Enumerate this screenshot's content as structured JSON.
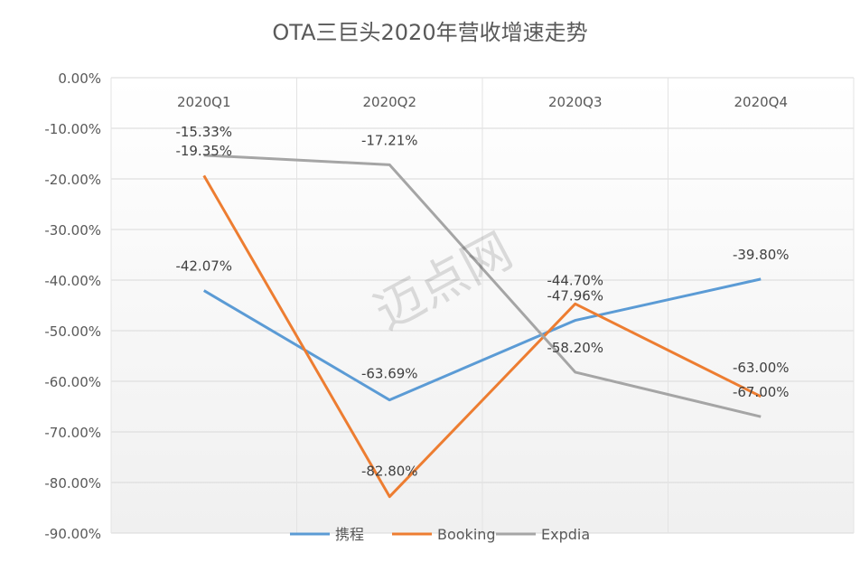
{
  "chart_data": {
    "type": "line",
    "title": "OTA三巨头2020年营收增速走势",
    "categories": [
      "2020Q1",
      "2020Q2",
      "2020Q3",
      "2020Q4"
    ],
    "series": [
      {
        "name": "携程",
        "color": "#5b9bd5",
        "values": [
          -42.07,
          -63.69,
          -47.96,
          -39.8
        ],
        "labels": [
          "-42.07%",
          "-63.69%",
          "-47.96%",
          "-39.80%"
        ]
      },
      {
        "name": "Booking",
        "color": "#ed7d31",
        "values": [
          -19.35,
          -82.8,
          -44.7,
          -63.0
        ],
        "labels": [
          "-19.35%",
          "-82.80%",
          "-44.70%",
          "-63.00%"
        ]
      },
      {
        "name": "Expdia",
        "color": "#a5a5a5",
        "values": [
          -15.33,
          -17.21,
          -58.2,
          -67.0
        ],
        "labels": [
          "-15.33%",
          "-17.21%",
          "-58.20%",
          "-67.00%"
        ]
      }
    ],
    "yticks": [
      "0.00%",
      "-10.00%",
      "-20.00%",
      "-30.00%",
      "-40.00%",
      "-50.00%",
      "-60.00%",
      "-70.00%",
      "-80.00%",
      "-90.00%"
    ],
    "ylim": [
      -90,
      0
    ],
    "grid": true,
    "legend": "bottom"
  },
  "watermark": "迈点网"
}
